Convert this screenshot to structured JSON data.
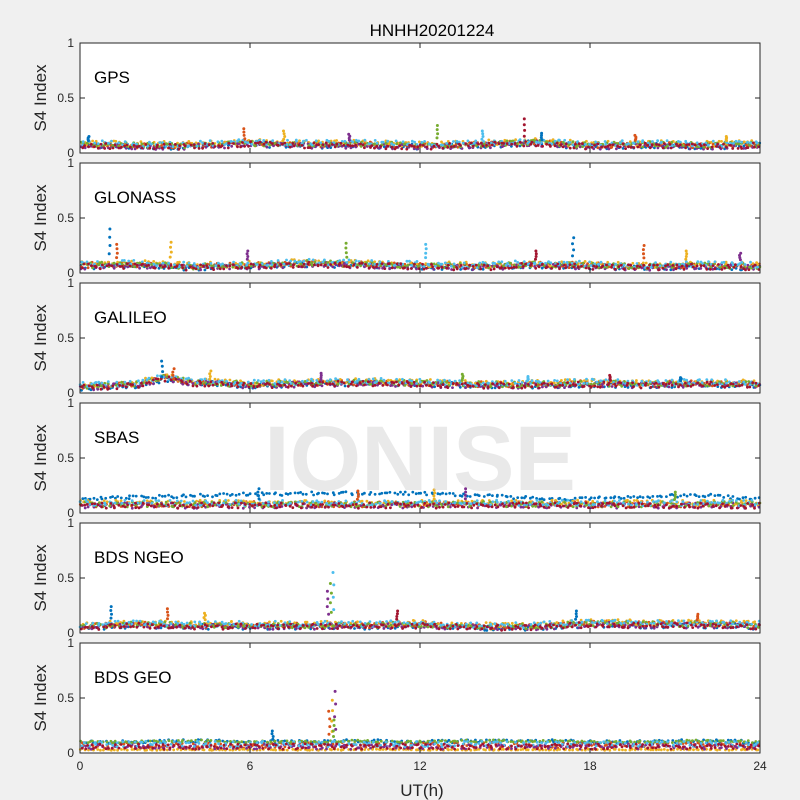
{
  "chart_data": {
    "type": "scatter",
    "title": "HNHH20201224",
    "xlabel": "UT(h)",
    "ylabel": "S4 Index",
    "xlim": [
      0,
      24
    ],
    "ylim": [
      0,
      1
    ],
    "xticks": [
      0,
      6,
      12,
      18,
      24
    ],
    "yticks": [
      0,
      0.5,
      1
    ],
    "ytick_labels": [
      "0",
      "0.5",
      "1"
    ],
    "series_colors": [
      "#0072bd",
      "#d95319",
      "#edb120",
      "#7e2f8e",
      "#77ac30",
      "#4dbeee",
      "#a2142f"
    ],
    "panels": [
      {
        "name": "GPS",
        "baseline": [
          [
            0,
            0.08
          ],
          [
            2,
            0.07
          ],
          [
            4,
            0.07
          ],
          [
            6,
            0.09
          ],
          [
            8,
            0.08
          ],
          [
            10,
            0.08
          ],
          [
            12,
            0.07
          ],
          [
            14,
            0.08
          ],
          [
            16,
            0.1
          ],
          [
            18,
            0.07
          ],
          [
            20,
            0.08
          ],
          [
            22,
            0.07
          ],
          [
            24,
            0.08
          ]
        ],
        "spikes": [
          [
            0.3,
            0.15
          ],
          [
            5.8,
            0.22
          ],
          [
            7.2,
            0.2
          ],
          [
            9.5,
            0.17
          ],
          [
            12.6,
            0.25
          ],
          [
            14.2,
            0.2
          ],
          [
            15.7,
            0.31
          ],
          [
            16.3,
            0.18
          ],
          [
            19.6,
            0.16
          ],
          [
            22.8,
            0.15
          ]
        ]
      },
      {
        "name": "GLONASS",
        "baseline": [
          [
            0,
            0.07
          ],
          [
            2,
            0.08
          ],
          [
            4,
            0.06
          ],
          [
            6,
            0.07
          ],
          [
            8,
            0.09
          ],
          [
            10,
            0.08
          ],
          [
            12,
            0.07
          ],
          [
            14,
            0.06
          ],
          [
            16,
            0.08
          ],
          [
            18,
            0.07
          ],
          [
            20,
            0.06
          ],
          [
            22,
            0.07
          ],
          [
            24,
            0.06
          ]
        ],
        "spikes": [
          [
            1.05,
            0.4
          ],
          [
            1.3,
            0.26
          ],
          [
            3.2,
            0.28
          ],
          [
            5.9,
            0.2
          ],
          [
            9.4,
            0.27
          ],
          [
            12.2,
            0.26
          ],
          [
            16.1,
            0.2
          ],
          [
            17.4,
            0.32
          ],
          [
            19.9,
            0.25
          ],
          [
            21.4,
            0.2
          ],
          [
            23.3,
            0.18
          ]
        ]
      },
      {
        "name": "GALILEO",
        "baseline": [
          [
            0,
            0.06
          ],
          [
            2,
            0.08
          ],
          [
            3,
            0.14
          ],
          [
            4,
            0.1
          ],
          [
            6,
            0.08
          ],
          [
            8,
            0.09
          ],
          [
            10,
            0.1
          ],
          [
            12,
            0.09
          ],
          [
            14,
            0.08
          ],
          [
            16,
            0.08
          ],
          [
            18,
            0.09
          ],
          [
            20,
            0.08
          ],
          [
            22,
            0.09
          ],
          [
            24,
            0.08
          ]
        ],
        "spikes": [
          [
            2.9,
            0.29
          ],
          [
            3.3,
            0.22
          ],
          [
            4.6,
            0.2
          ],
          [
            8.5,
            0.18
          ],
          [
            13.5,
            0.17
          ],
          [
            15.8,
            0.15
          ],
          [
            18.7,
            0.16
          ],
          [
            21.2,
            0.14
          ]
        ]
      },
      {
        "name": "SBAS",
        "baseline": [
          [
            0,
            0.08
          ],
          [
            4,
            0.08
          ],
          [
            8,
            0.08
          ],
          [
            12,
            0.08
          ],
          [
            16,
            0.08
          ],
          [
            20,
            0.08
          ],
          [
            24,
            0.08
          ]
        ],
        "high_band": [
          [
            0,
            0.13
          ],
          [
            3,
            0.15
          ],
          [
            6,
            0.17
          ],
          [
            9,
            0.18
          ],
          [
            12,
            0.18
          ],
          [
            14,
            0.16
          ],
          [
            17,
            0.12
          ],
          [
            20,
            0.15
          ],
          [
            22,
            0.16
          ],
          [
            24,
            0.13
          ]
        ],
        "spikes": [
          [
            6.3,
            0.22
          ],
          [
            9.8,
            0.2
          ],
          [
            12.5,
            0.21
          ],
          [
            13.6,
            0.22
          ],
          [
            21.0,
            0.19
          ]
        ]
      },
      {
        "name": "BDS NGEO",
        "baseline": [
          [
            0,
            0.06
          ],
          [
            2,
            0.08
          ],
          [
            4,
            0.07
          ],
          [
            6,
            0.07
          ],
          [
            8,
            0.07
          ],
          [
            10,
            0.07
          ],
          [
            12,
            0.08
          ],
          [
            14,
            0.06
          ],
          [
            16,
            0.06
          ],
          [
            18,
            0.09
          ],
          [
            20,
            0.08
          ],
          [
            22,
            0.08
          ],
          [
            24,
            0.07
          ]
        ],
        "spikes": [
          [
            1.1,
            0.24
          ],
          [
            3.1,
            0.22
          ],
          [
            4.4,
            0.18
          ],
          [
            8.75,
            0.38
          ],
          [
            8.85,
            0.45
          ],
          [
            8.95,
            0.55
          ],
          [
            11.2,
            0.2
          ],
          [
            17.5,
            0.2
          ],
          [
            21.8,
            0.17
          ]
        ]
      },
      {
        "name": "BDS GEO",
        "baseline": [
          [
            0,
            0.07
          ],
          [
            4,
            0.07
          ],
          [
            8,
            0.07
          ],
          [
            12,
            0.07
          ],
          [
            16,
            0.07
          ],
          [
            20,
            0.07
          ],
          [
            24,
            0.07
          ]
        ],
        "high_band": [
          [
            0,
            0.1
          ],
          [
            2,
            0.1
          ],
          [
            4,
            0.11
          ],
          [
            6,
            0.1
          ],
          [
            8,
            0.1
          ],
          [
            10,
            0.11
          ],
          [
            12,
            0.1
          ],
          [
            14,
            0.11
          ],
          [
            16,
            0.11
          ],
          [
            18,
            0.1
          ],
          [
            20,
            0.1
          ],
          [
            22,
            0.11
          ],
          [
            24,
            0.1
          ]
        ],
        "low_band": [
          [
            0,
            0.03
          ],
          [
            24,
            0.03
          ]
        ],
        "spikes": [
          [
            6.8,
            0.2
          ],
          [
            8.8,
            0.38
          ],
          [
            8.9,
            0.48
          ],
          [
            9.0,
            0.56
          ],
          [
            8.95,
            0.3
          ]
        ]
      }
    ]
  },
  "watermark": "IONISE"
}
